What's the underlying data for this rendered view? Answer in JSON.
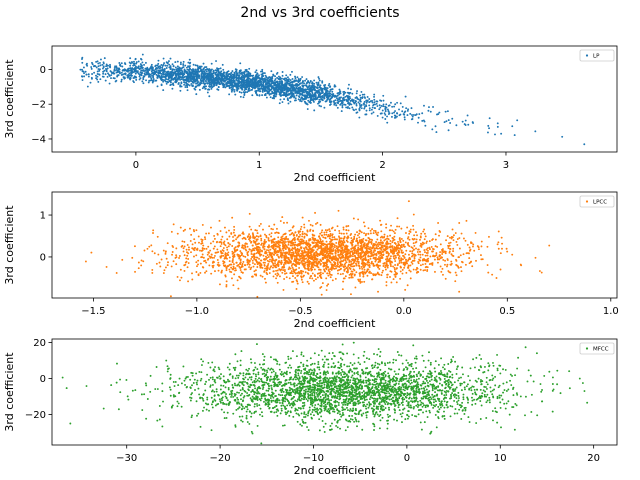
{
  "figure": {
    "title": "2nd vs 3rd coefficients"
  },
  "chart_data": [
    {
      "type": "scatter",
      "legend_position": "upper right",
      "series": [
        {
          "name": "LP",
          "color": "#1f77b4"
        }
      ],
      "xlabel": "2nd coefficient",
      "ylabel": "3rd coefficient",
      "xlim": [
        -0.68,
        3.9
      ],
      "ylim": [
        -4.75,
        1.35
      ],
      "xticks": [
        0,
        1,
        2,
        3
      ],
      "yticks": [
        0,
        -2,
        -4
      ],
      "distribution": {
        "n": 3000,
        "x_center": 0.85,
        "x_spread": 0.62,
        "x_min": -0.45,
        "x_max": 3.75,
        "y_trend": [
          [
            -0.45,
            -0.1
          ],
          [
            0.0,
            -0.1
          ],
          [
            0.5,
            -0.4
          ],
          [
            1.0,
            -0.8
          ],
          [
            1.5,
            -1.4
          ],
          [
            2.0,
            -2.2
          ],
          [
            2.5,
            -2.9
          ],
          [
            3.0,
            -3.4
          ],
          [
            3.75,
            -4.3
          ]
        ],
        "y_noise": 0.32
      }
    },
    {
      "type": "scatter",
      "legend_position": "upper right",
      "series": [
        {
          "name": "LPCC",
          "color": "#ff7f0e"
        }
      ],
      "xlabel": "2nd coefficient",
      "ylabel": "3rd coefficient",
      "xlim": [
        -1.7,
        1.03
      ],
      "ylim": [
        -0.98,
        1.55
      ],
      "xticks": [
        -1.5,
        -1.0,
        -0.5,
        0.0,
        0.5,
        1.0
      ],
      "yticks": [
        1,
        0
      ],
      "distribution": {
        "n": 3000,
        "x_center": -0.4,
        "x_spread": 0.33,
        "x_min": -1.58,
        "x_max": 0.9,
        "y_trend": [
          [
            -1.58,
            0.08
          ],
          [
            0.9,
            0.08
          ]
        ],
        "y_noise": 0.3
      }
    },
    {
      "type": "scatter",
      "legend_position": "upper right",
      "series": [
        {
          "name": "MFCC",
          "color": "#2ca02c"
        }
      ],
      "xlabel": "2nd coefficient",
      "ylabel": "3rd coefficient",
      "xlim": [
        -38,
        22.5
      ],
      "ylim": [
        -37,
        22
      ],
      "xticks": [
        -30,
        -20,
        -10,
        0,
        10,
        20
      ],
      "yticks": [
        20,
        0,
        -20
      ],
      "distribution": {
        "n": 3000,
        "x_center": -6.5,
        "x_spread": 8.5,
        "x_min": -37,
        "x_max": 20,
        "y_trend": [
          [
            -37,
            -7.5
          ],
          [
            20,
            -5.5
          ]
        ],
        "y_noise": 8.5
      }
    }
  ]
}
